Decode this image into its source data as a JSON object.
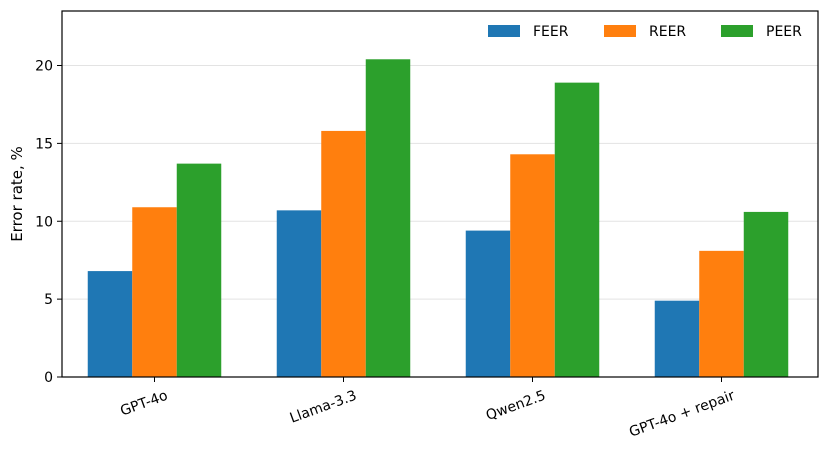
{
  "chart_data": {
    "type": "bar",
    "title": "",
    "xlabel": "",
    "ylabel": "Error rate, %",
    "categories": [
      "GPT-4o",
      "Llama-3.3",
      "Qwen2.5",
      "GPT-4o + repair"
    ],
    "ylim": [
      0,
      23.5
    ],
    "yticks": [
      0,
      5,
      10,
      15,
      20
    ],
    "grid": "y",
    "legend_position": "top-right",
    "series": [
      {
        "name": "FEER",
        "color": "#1f77b4",
        "values": [
          6.8,
          10.7,
          9.4,
          4.9
        ]
      },
      {
        "name": "REER",
        "color": "#ff7f0e",
        "values": [
          10.9,
          15.8,
          14.3,
          8.1
        ]
      },
      {
        "name": "PEER",
        "color": "#2ca02c",
        "values": [
          13.7,
          20.4,
          18.9,
          10.6
        ]
      }
    ]
  }
}
